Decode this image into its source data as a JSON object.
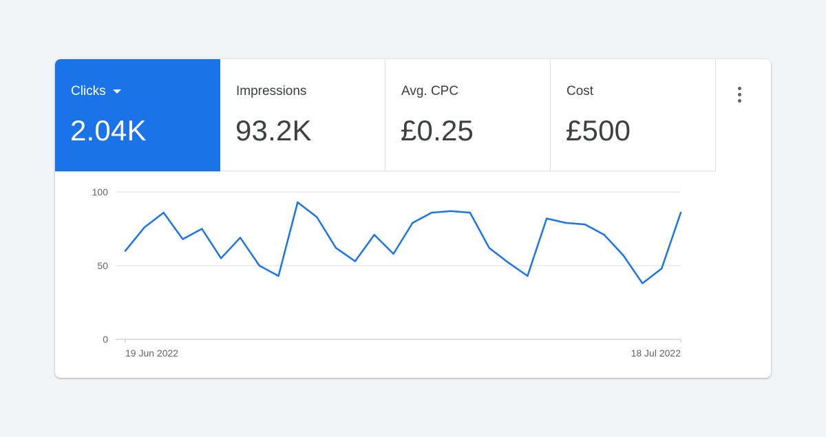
{
  "metrics": {
    "clicks": {
      "label": "Clicks",
      "value": "2.04K"
    },
    "impressions": {
      "label": "Impressions",
      "value": "93.2K"
    },
    "avg_cpc": {
      "label": "Avg. CPC",
      "value": "£0.25"
    },
    "cost": {
      "label": "Cost",
      "value": "£500"
    }
  },
  "menu": {
    "icon": "more-vert-icon"
  },
  "colors": {
    "accent": "#1a73e8",
    "line": "#1a73e8",
    "grid": "#dadce0",
    "text": "#3c4043"
  },
  "chart_data": {
    "type": "line",
    "series": [
      {
        "name": "Clicks",
        "values": [
          60,
          76,
          86,
          68,
          75,
          55,
          69,
          50,
          43,
          93,
          83,
          62,
          53,
          71,
          58,
          79,
          86,
          87,
          86,
          62,
          52,
          43,
          82,
          79,
          78,
          71,
          57,
          38,
          48,
          86
        ]
      }
    ],
    "x_tick_labels": [
      "19 Jun 2022",
      "18 Jul 2022"
    ],
    "y_ticks": [
      "0",
      "50",
      "100"
    ],
    "ylim": [
      0,
      100
    ],
    "grid": true
  }
}
